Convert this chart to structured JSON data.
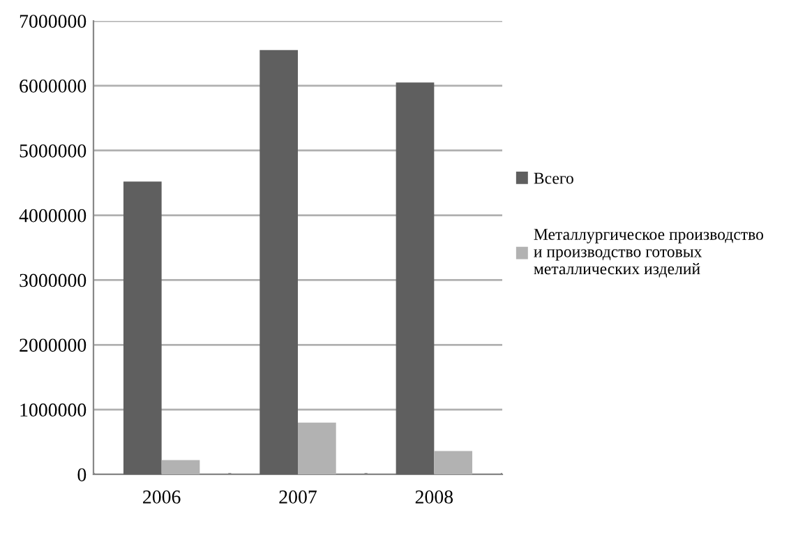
{
  "chart_data": {
    "type": "bar",
    "categories": [
      "2006",
      "2007",
      "2008"
    ],
    "series": [
      {
        "name": "Всего",
        "color": "#5f5f5f",
        "values": [
          4520000,
          6550000,
          6050000
        ]
      },
      {
        "name": "Металлургическое производство\nи производство готовых\nметаллических изделий",
        "color": "#b2b2b2",
        "values": [
          220000,
          800000,
          360000
        ]
      }
    ],
    "ylim": [
      0,
      7000000
    ],
    "yticks": [
      0,
      1000000,
      2000000,
      3000000,
      4000000,
      5000000,
      6000000,
      7000000
    ],
    "grid": "y",
    "legend": "right"
  }
}
